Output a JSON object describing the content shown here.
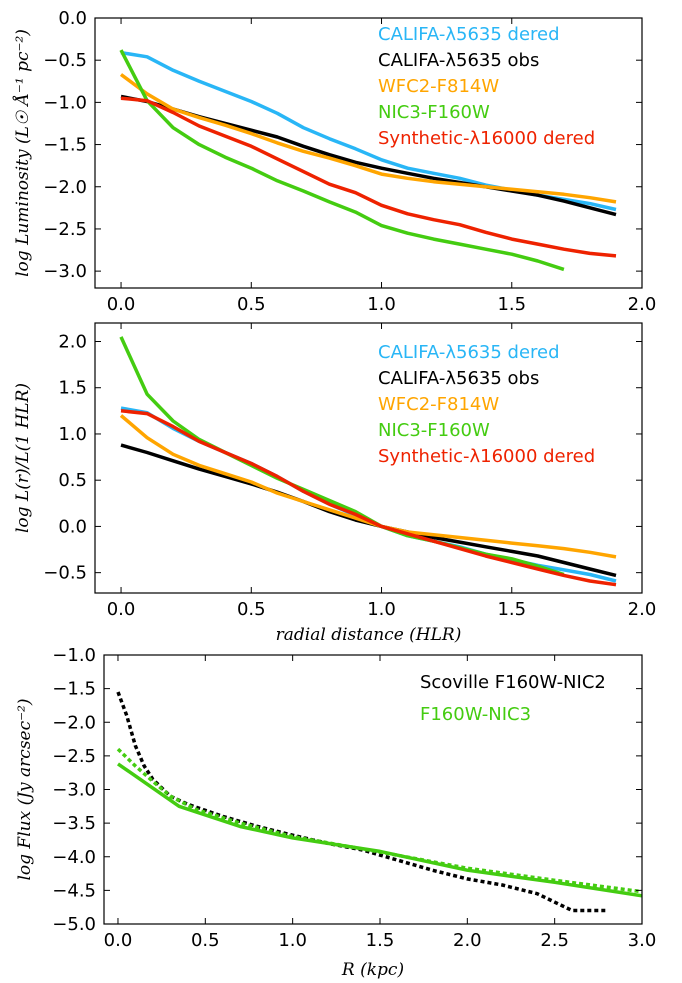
{
  "chart_data": [
    {
      "type": "line",
      "xlabel": "",
      "ylabel": "log Luminosity (L☉ Å⁻¹ pc⁻²)",
      "xlim": [
        -0.1,
        2.0
      ],
      "ylim": [
        -3.2,
        0.0
      ],
      "xticks": [
        "0.0",
        "0.5",
        "1.0",
        "1.5",
        "2.0"
      ],
      "yticks": [
        "0.0",
        "-0.5",
        "-1.0",
        "-1.5",
        "-2.0",
        "-2.5",
        "-3.0"
      ],
      "legend_position": "top-right",
      "series": [
        {
          "name": "CALIFA-λ5635 dered",
          "color": "#29b6f6",
          "style": "solid",
          "x": [
            0,
            0.1,
            0.2,
            0.3,
            0.4,
            0.5,
            0.6,
            0.7,
            0.8,
            0.9,
            1.0,
            1.1,
            1.2,
            1.3,
            1.4,
            1.5,
            1.6,
            1.7,
            1.8,
            1.9
          ],
          "y": [
            -0.41,
            -0.46,
            -0.62,
            -0.75,
            -0.87,
            -0.99,
            -1.13,
            -1.3,
            -1.43,
            -1.55,
            -1.68,
            -1.78,
            -1.84,
            -1.9,
            -1.98,
            -2.04,
            -2.1,
            -2.15,
            -2.2,
            -2.27
          ]
        },
        {
          "name": "CALIFA-λ5635 obs",
          "color": "#000000",
          "style": "solid",
          "x": [
            0,
            0.1,
            0.2,
            0.3,
            0.4,
            0.5,
            0.6,
            0.7,
            0.8,
            0.9,
            1.0,
            1.1,
            1.2,
            1.3,
            1.4,
            1.5,
            1.6,
            1.7,
            1.8,
            1.9
          ],
          "y": [
            -0.93,
            -0.99,
            -1.08,
            -1.17,
            -1.25,
            -1.33,
            -1.41,
            -1.52,
            -1.62,
            -1.71,
            -1.78,
            -1.84,
            -1.9,
            -1.95,
            -2.0,
            -2.05,
            -2.1,
            -2.17,
            -2.25,
            -2.33
          ]
        },
        {
          "name": "WFC2-F814W",
          "color": "#ffa500",
          "style": "solid",
          "x": [
            0,
            0.1,
            0.2,
            0.3,
            0.4,
            0.5,
            0.6,
            0.7,
            0.8,
            0.9,
            1.0,
            1.1,
            1.2,
            1.3,
            1.4,
            1.5,
            1.6,
            1.7,
            1.8,
            1.9
          ],
          "y": [
            -0.67,
            -0.9,
            -1.08,
            -1.18,
            -1.27,
            -1.37,
            -1.48,
            -1.58,
            -1.66,
            -1.75,
            -1.85,
            -1.9,
            -1.94,
            -1.97,
            -2.0,
            -2.03,
            -2.06,
            -2.09,
            -2.13,
            -2.18
          ]
        },
        {
          "name": "NIC3-F160W",
          "color": "#44cc11",
          "style": "solid",
          "x": [
            0,
            0.1,
            0.2,
            0.3,
            0.4,
            0.5,
            0.6,
            0.7,
            0.8,
            0.9,
            1.0,
            1.1,
            1.2,
            1.3,
            1.4,
            1.5,
            1.6,
            1.7
          ],
          "y": [
            -0.38,
            -0.98,
            -1.3,
            -1.5,
            -1.65,
            -1.78,
            -1.93,
            -2.05,
            -2.18,
            -2.3,
            -2.46,
            -2.55,
            -2.62,
            -2.68,
            -2.74,
            -2.8,
            -2.88,
            -2.98
          ]
        },
        {
          "name": "Synthetic-λ16000 dered",
          "color": "#ee2200",
          "style": "solid",
          "x": [
            0,
            0.1,
            0.2,
            0.3,
            0.4,
            0.5,
            0.6,
            0.7,
            0.8,
            0.9,
            1.0,
            1.1,
            1.2,
            1.3,
            1.4,
            1.5,
            1.6,
            1.7,
            1.8,
            1.9
          ],
          "y": [
            -0.95,
            -0.98,
            -1.12,
            -1.28,
            -1.4,
            -1.52,
            -1.67,
            -1.82,
            -1.97,
            -2.07,
            -2.22,
            -2.32,
            -2.39,
            -2.45,
            -2.54,
            -2.62,
            -2.68,
            -2.74,
            -2.79,
            -2.82
          ]
        }
      ]
    },
    {
      "type": "line",
      "xlabel": "radial distance (HLR)",
      "ylabel": "log L(r)/L(1 HLR)",
      "xlim": [
        -0.1,
        2.0
      ],
      "ylim": [
        -0.72,
        2.2
      ],
      "xticks": [
        "0.0",
        "0.5",
        "1.0",
        "1.5",
        "2.0"
      ],
      "yticks": [
        "2.0",
        "1.5",
        "1.0",
        "0.5",
        "0.0",
        "-0.5"
      ],
      "legend_position": "top-right",
      "series": [
        {
          "name": "CALIFA-λ5635 dered",
          "color": "#29b6f6",
          "style": "solid",
          "x": [
            0,
            0.1,
            0.2,
            0.3,
            0.4,
            0.5,
            0.6,
            0.7,
            0.8,
            0.9,
            1.0,
            1.1,
            1.2,
            1.3,
            1.4,
            1.5,
            1.6,
            1.7,
            1.8,
            1.9
          ],
          "y": [
            1.28,
            1.23,
            1.06,
            0.92,
            0.8,
            0.68,
            0.54,
            0.38,
            0.24,
            0.12,
            0.0,
            -0.1,
            -0.16,
            -0.22,
            -0.3,
            -0.36,
            -0.42,
            -0.47,
            -0.52,
            -0.59
          ]
        },
        {
          "name": "CALIFA-λ5635 obs",
          "color": "#000000",
          "style": "solid",
          "x": [
            0,
            0.1,
            0.2,
            0.3,
            0.4,
            0.5,
            0.6,
            0.7,
            0.8,
            0.9,
            1.0,
            1.1,
            1.2,
            1.3,
            1.4,
            1.5,
            1.6,
            1.7,
            1.8,
            1.9
          ],
          "y": [
            0.88,
            0.8,
            0.71,
            0.62,
            0.54,
            0.46,
            0.37,
            0.27,
            0.16,
            0.07,
            0.0,
            -0.06,
            -0.12,
            -0.17,
            -0.22,
            -0.27,
            -0.32,
            -0.39,
            -0.46,
            -0.53
          ]
        },
        {
          "name": "WFC2-F814W",
          "color": "#ffa500",
          "style": "solid",
          "x": [
            0,
            0.1,
            0.2,
            0.3,
            0.4,
            0.5,
            0.6,
            0.7,
            0.8,
            0.9,
            1.0,
            1.1,
            1.2,
            1.3,
            1.4,
            1.5,
            1.6,
            1.7,
            1.8,
            1.9
          ],
          "y": [
            1.2,
            0.96,
            0.78,
            0.66,
            0.57,
            0.48,
            0.36,
            0.27,
            0.18,
            0.09,
            0.0,
            -0.06,
            -0.09,
            -0.12,
            -0.15,
            -0.18,
            -0.21,
            -0.24,
            -0.28,
            -0.33
          ]
        },
        {
          "name": "NIC3-F160W",
          "color": "#44cc11",
          "style": "solid",
          "x": [
            0,
            0.1,
            0.2,
            0.3,
            0.4,
            0.5,
            0.6,
            0.7,
            0.8,
            0.9,
            1.0,
            1.1,
            1.2,
            1.3,
            1.4,
            1.5,
            1.6,
            1.7
          ],
          "y": [
            2.05,
            1.43,
            1.14,
            0.94,
            0.8,
            0.66,
            0.52,
            0.4,
            0.28,
            0.16,
            0.0,
            -0.1,
            -0.16,
            -0.23,
            -0.3,
            -0.35,
            -0.43,
            -0.52
          ]
        },
        {
          "name": "Synthetic-λ16000 dered",
          "color": "#ee2200",
          "style": "solid",
          "x": [
            0,
            0.1,
            0.2,
            0.3,
            0.4,
            0.5,
            0.6,
            0.7,
            0.8,
            0.9,
            1.0,
            1.1,
            1.2,
            1.3,
            1.4,
            1.5,
            1.6,
            1.7,
            1.8,
            1.9
          ],
          "y": [
            1.25,
            1.22,
            1.08,
            0.92,
            0.8,
            0.68,
            0.54,
            0.38,
            0.24,
            0.13,
            0.0,
            -0.08,
            -0.16,
            -0.24,
            -0.32,
            -0.39,
            -0.46,
            -0.53,
            -0.59,
            -0.63
          ]
        }
      ]
    },
    {
      "type": "line",
      "xlabel": "R (kpc)",
      "ylabel": "log Flux (Jy arcsec⁻²)",
      "xlim": [
        -0.08,
        3.0
      ],
      "ylim": [
        -5.0,
        -1.0
      ],
      "xticks": [
        "0.0",
        "0.5",
        "1.0",
        "1.5",
        "2.0",
        "2.5",
        "3.0"
      ],
      "yticks": [
        "-1.0",
        "-1.5",
        "-2.0",
        "-2.5",
        "-3.0",
        "-3.5",
        "-4.0",
        "-4.5",
        "-5.0"
      ],
      "legend_position": "top-right",
      "series": [
        {
          "name": "Scoville F160W-NIC2",
          "color": "#000000",
          "style": "dotted",
          "x": [
            0,
            0.05,
            0.1,
            0.15,
            0.2,
            0.3,
            0.4,
            0.6,
            0.8,
            1.0,
            1.2,
            1.4,
            1.6,
            1.8,
            2.0,
            2.2,
            2.4,
            2.6,
            2.8
          ],
          "y": [
            -1.55,
            -1.9,
            -2.35,
            -2.65,
            -2.85,
            -3.1,
            -3.22,
            -3.4,
            -3.55,
            -3.68,
            -3.8,
            -3.9,
            -4.05,
            -4.2,
            -4.33,
            -4.42,
            -4.55,
            -4.8,
            -4.8
          ]
        },
        {
          "name": "F160W-NIC3",
          "color": "#44cc11",
          "style": "dotted",
          "x": [
            0,
            0.1,
            0.2,
            0.3,
            0.45,
            0.7,
            1.0,
            1.5,
            2.0,
            2.5,
            3.0
          ],
          "y": [
            -2.4,
            -2.65,
            -2.88,
            -3.1,
            -3.3,
            -3.5,
            -3.7,
            -3.93,
            -4.17,
            -4.35,
            -4.52
          ]
        },
        {
          "name": "",
          "color": "#44cc11",
          "style": "solid",
          "x": [
            0,
            0.35,
            0.7,
            1.0,
            1.5,
            2.0,
            2.5,
            3.0
          ],
          "y": [
            -2.62,
            -3.25,
            -3.55,
            -3.72,
            -3.92,
            -4.2,
            -4.38,
            -4.58
          ]
        }
      ]
    }
  ]
}
